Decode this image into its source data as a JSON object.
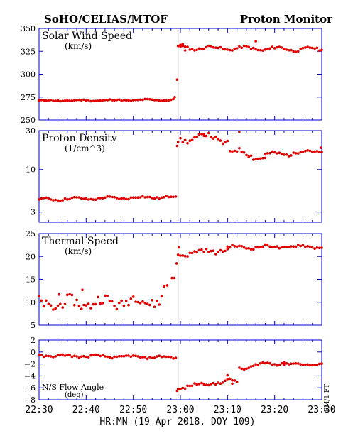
{
  "header": {
    "instrument": "SoHO/CELIAS/MTOF",
    "monitor": "Proton Monitor"
  },
  "xaxis": {
    "label": "HR:MN (19 Apr 2018, DOY 109)",
    "tick_labels": [
      "22:30",
      "22:40",
      "22:50",
      "23:00",
      "23:10",
      "23:20",
      "23:30"
    ],
    "range_minutes": [
      0,
      60
    ]
  },
  "side_label": "PM/1 FT",
  "colors": {
    "points": "#e00000",
    "axes": "#0000cc",
    "text": "#000000",
    "shock_line": "#999999"
  },
  "shock_time_min": 29.5,
  "chart_data": [
    {
      "type": "scatter",
      "title": "Solar Wind Speed",
      "unit": "(km/s)",
      "scale": "linear",
      "ylim": [
        250,
        350
      ],
      "ytick_values": [
        250,
        275,
        300,
        325,
        350
      ],
      "ytick_labels": [
        "250",
        "275",
        "300",
        "325",
        "350"
      ],
      "segments": [
        {
          "x0": 0,
          "x1": 28.5,
          "start": 271,
          "end": 272,
          "amp": 0.6,
          "jitter": 0.7
        },
        {
          "x0": 29.5,
          "x1": 60,
          "start": 329,
          "end": 327,
          "amp": 2,
          "jitter": 1.2
        }
      ],
      "extra_points": [
        {
          "x": 28.8,
          "y": 275
        },
        {
          "x": 29.3,
          "y": 294
        },
        {
          "x": 30.0,
          "y": 332
        },
        {
          "x": 30.5,
          "y": 333
        },
        {
          "x": 31.0,
          "y": 326
        },
        {
          "x": 46.0,
          "y": 336
        }
      ]
    },
    {
      "type": "scatter",
      "title": "Proton Density",
      "unit": "(1/cm^3)",
      "scale": "log",
      "ylim": [
        2.25,
        30
      ],
      "ytick_values": [
        3,
        10,
        30
      ],
      "ytick_labels": [
        "3",
        "10",
        "30"
      ],
      "segments": [
        {
          "x0": 0,
          "x1": 29,
          "start": 4.3,
          "end": 4.6,
          "amp": 0.12,
          "jitter": 0.12
        },
        {
          "x0": 29.5,
          "x1": 35,
          "start": 22,
          "end": 26,
          "amp": 1.5,
          "jitter": 1.5
        },
        {
          "x0": 35,
          "x1": 40,
          "start": 26,
          "end": 22,
          "amp": 1.5,
          "jitter": 1.5
        },
        {
          "x0": 40.5,
          "x1": 48,
          "start": 17,
          "end": 14,
          "amp": 1.2,
          "jitter": 1.0
        },
        {
          "x0": 48,
          "x1": 60,
          "start": 15,
          "end": 17,
          "amp": 0.8,
          "jitter": 0.6
        }
      ],
      "extra_points": [
        {
          "x": 29.3,
          "y": 19.5
        },
        {
          "x": 42.5,
          "y": 29
        },
        {
          "x": 59.8,
          "y": 18.5
        }
      ]
    },
    {
      "type": "scatter",
      "title": "Thermal Speed",
      "unit": "(km/s)",
      "scale": "linear",
      "ylim": [
        5,
        25
      ],
      "ytick_values": [
        5,
        10,
        15,
        20,
        25
      ],
      "ytick_labels": [
        "5",
        "10",
        "15",
        "20",
        "25"
      ],
      "segments": [
        {
          "x0": 0,
          "x1": 26,
          "start": 9.5,
          "end": 10.5,
          "amp": 0.9,
          "jitter": 1.1
        },
        {
          "x0": 29.5,
          "x1": 40,
          "start": 20.5,
          "end": 21.5,
          "amp": 0.4,
          "jitter": 0.4
        },
        {
          "x0": 40,
          "x1": 60,
          "start": 22,
          "end": 22.2,
          "amp": 0.3,
          "jitter": 0.25
        }
      ],
      "extra_points": [
        {
          "x": 26.5,
          "y": 13.5
        },
        {
          "x": 27.2,
          "y": 13.7
        },
        {
          "x": 28.2,
          "y": 15.3
        },
        {
          "x": 28.7,
          "y": 15.3
        },
        {
          "x": 29.2,
          "y": 18.5
        },
        {
          "x": 29.7,
          "y": 22
        },
        {
          "x": 9.2,
          "y": 12.7
        },
        {
          "x": 4.2,
          "y": 11.7
        }
      ]
    },
    {
      "type": "scatter",
      "title": "N/S Flow Angle",
      "unit": "(deg)",
      "scale": "linear",
      "ylim": [
        -8,
        2
      ],
      "ytick_values": [
        -8,
        -6,
        -4,
        -2,
        0,
        2
      ],
      "ytick_labels": [
        "−8",
        "−6",
        "−4",
        "−2",
        "0",
        "2"
      ],
      "segments": [
        {
          "x0": 0,
          "x1": 29,
          "start": -0.6,
          "end": -0.9,
          "amp": 0.15,
          "jitter": 0.15
        },
        {
          "x0": 29.5,
          "x1": 36,
          "start": -6.1,
          "end": -5.2,
          "amp": 0.2,
          "jitter": 0.2
        },
        {
          "x0": 36,
          "x1": 42,
          "start": -5.2,
          "end": -4.9,
          "amp": 0.3,
          "jitter": 0.25
        },
        {
          "x0": 42.5,
          "x1": 52,
          "start": -2.7,
          "end": -1.6,
          "amp": 0.3,
          "jitter": 0.2
        },
        {
          "x0": 52,
          "x1": 60,
          "start": -2.0,
          "end": -2.1,
          "amp": 0.12,
          "jitter": 0.12
        }
      ],
      "extra_points": [
        {
          "x": 29.3,
          "y": -6.5
        },
        {
          "x": 40,
          "y": -3.9
        },
        {
          "x": 41,
          "y": -5.3
        }
      ]
    }
  ]
}
